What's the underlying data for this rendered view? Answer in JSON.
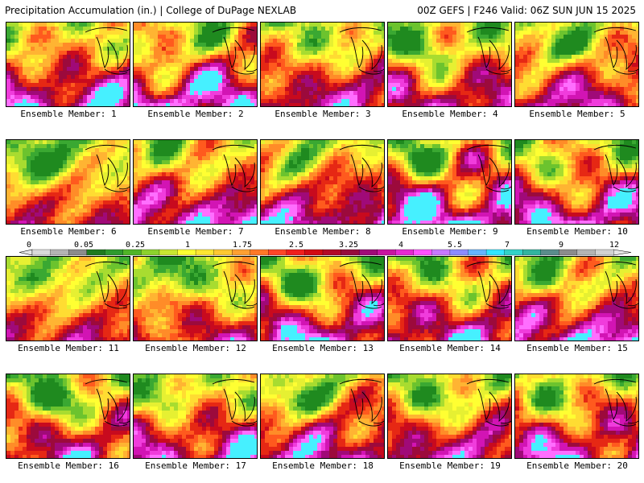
{
  "header": {
    "left_title": "Precipitation Accumulation (in.) | College of DuPage NEXLAB",
    "right_title": "00Z GEFS | F246 Valid: 06Z SUN JUN 15 2025"
  },
  "members": [
    {
      "label": "Ensemble Member: 1",
      "intensity": 0.78
    },
    {
      "label": "Ensemble Member: 2",
      "intensity": 0.82
    },
    {
      "label": "Ensemble Member: 3",
      "intensity": 0.62
    },
    {
      "label": "Ensemble Member: 4",
      "intensity": 0.55
    },
    {
      "label": "Ensemble Member: 5",
      "intensity": 0.6
    },
    {
      "label": "Ensemble Member: 6",
      "intensity": 0.38
    },
    {
      "label": "Ensemble Member: 7",
      "intensity": 0.8
    },
    {
      "label": "Ensemble Member: 8",
      "intensity": 0.7
    },
    {
      "label": "Ensemble Member: 9",
      "intensity": 0.88
    },
    {
      "label": "Ensemble Member: 10",
      "intensity": 0.75
    },
    {
      "label": "Ensemble Member: 11",
      "intensity": 0.45
    },
    {
      "label": "Ensemble Member: 12",
      "intensity": 0.42
    },
    {
      "label": "Ensemble Member: 13",
      "intensity": 0.72
    },
    {
      "label": "Ensemble Member: 14",
      "intensity": 0.66
    },
    {
      "label": "Ensemble Member: 15",
      "intensity": 0.78
    },
    {
      "label": "Ensemble Member: 16",
      "intensity": 0.55
    },
    {
      "label": "Ensemble Member: 17",
      "intensity": 0.68
    },
    {
      "label": "Ensemble Member: 18",
      "intensity": 0.7
    },
    {
      "label": "Ensemble Member: 19",
      "intensity": 0.64
    },
    {
      "label": "Ensemble Member: 20",
      "intensity": 0.66
    }
  ],
  "colorbar": {
    "tick_labels": [
      "0",
      "0.05",
      "0.25",
      "1",
      "1.75",
      "2.5",
      "3.25",
      "4",
      "5.5",
      "7",
      "9",
      "12"
    ],
    "colors": [
      "#d9d9d9",
      "#b4b4b4",
      "#8c8c8c",
      "#1f7a1f",
      "#2f9a2f",
      "#50b428",
      "#8cd22d",
      "#c8e632",
      "#ffff32",
      "#ffe632",
      "#ffc832",
      "#ffa032",
      "#ff7828",
      "#ff4628",
      "#f01e1e",
      "#d20a14",
      "#b40a28",
      "#960a3c",
      "#a00a78",
      "#c814a0",
      "#e628d2",
      "#ff50ff",
      "#c878ff",
      "#8c8cff",
      "#64b4ff",
      "#32e6ff",
      "#32d2c8",
      "#32b4a0",
      "#5a8c8c",
      "#8c8c8c",
      "#b4b4b4",
      "#d2d2d2"
    ]
  }
}
